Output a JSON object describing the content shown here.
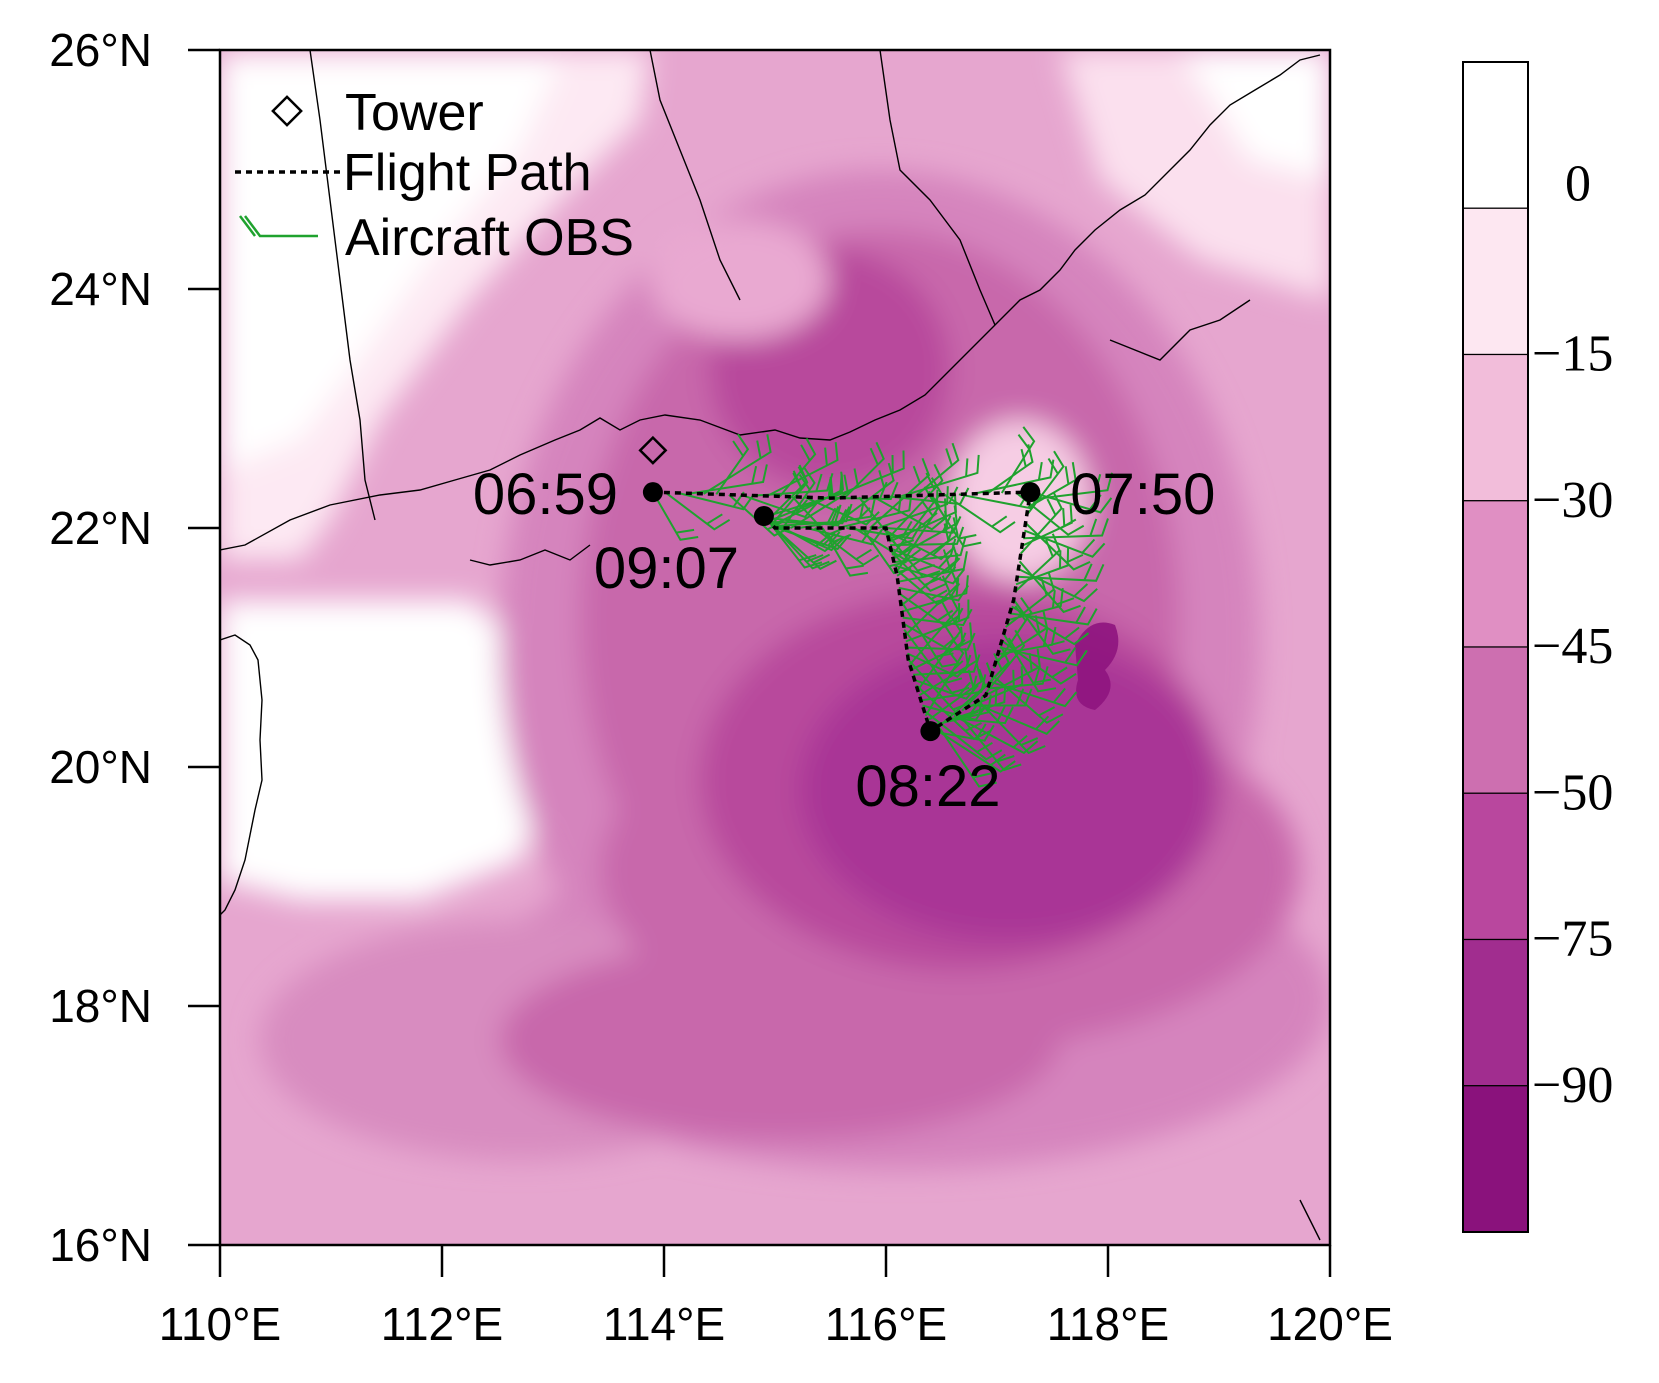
{
  "map": {
    "lon_ticks": [
      "110°E",
      "112°E",
      "114°E",
      "116°E",
      "118°E",
      "120°E"
    ],
    "lat_ticks": [
      "16°N",
      "18°N",
      "20°N",
      "22°N",
      "24°N",
      "26°N"
    ],
    "lon_range": [
      110,
      120
    ],
    "lat_range": [
      16,
      26
    ]
  },
  "legend": {
    "tower": "Tower",
    "flight_path": "Flight Path",
    "aircraft_obs": "Aircraft OBS"
  },
  "colorbar": {
    "labels": [
      "0",
      "−15",
      "−30",
      "−45",
      "−50",
      "−75",
      "−90"
    ],
    "colors": [
      "#ffffff",
      "#fde7f1",
      "#f2bdda",
      "#e08fc3",
      "#cd6fb0",
      "#b9479e",
      "#a12d8f",
      "#8a127c"
    ]
  },
  "markers": {
    "tower": {
      "lon": 113.9,
      "lat": 22.65
    },
    "times": [
      {
        "label": "06:59",
        "lon": 113.9,
        "lat": 22.3
      },
      {
        "label": "07:50",
        "lon": 117.3,
        "lat": 22.3
      },
      {
        "label": "08:22",
        "lon": 116.4,
        "lat": 20.3
      },
      {
        "label": "09:07",
        "lon": 114.9,
        "lat": 22.1
      }
    ]
  },
  "flight_path": [
    [
      113.9,
      22.3
    ],
    [
      115.5,
      22.25
    ],
    [
      117.3,
      22.3
    ],
    [
      117.15,
      21.4
    ],
    [
      116.9,
      20.6
    ],
    [
      116.4,
      20.3
    ],
    [
      116.2,
      20.9
    ],
    [
      116.1,
      21.6
    ],
    [
      116.0,
      22.0
    ],
    [
      115.0,
      22.0
    ],
    [
      114.9,
      22.1
    ]
  ],
  "colors": {
    "obs_green": "#1fa22e",
    "path_black": "#000000"
  }
}
